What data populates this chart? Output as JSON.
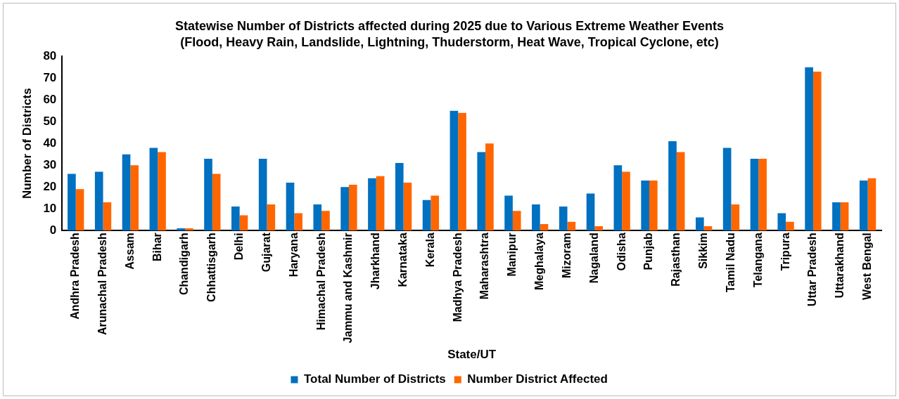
{
  "chart_data": {
    "type": "bar",
    "title": "Statewise Number of Districts affected during 2025 due to Various Extreme Weather Events",
    "subtitle": "(Flood, Heavy Rain, Landslide, Lightning, Thuderstorm, Heat Wave, Tropical Cyclone, etc)",
    "xlabel": "State/UT",
    "ylabel": "Number of Districts",
    "categories": [
      "Andhra Pradesh",
      "Arunachal Pradesh",
      "Assam",
      "Bihar",
      "Chandigarh",
      "Chhattisgarh",
      "Delhi",
      "Gujarat",
      "Haryana",
      "Himachal Pradesh",
      "Jammu and Kashmir",
      "Jharkhand",
      "Karnataka",
      "Kerala",
      "Madhya Pradesh",
      "Maharashtra",
      "Manipur",
      "Meghalaya",
      "Mizoram",
      "Nagaland",
      "Odisha",
      "Punjab",
      "Rajasthan",
      "Sikkim",
      "Tamil Nadu",
      "Telangana",
      "Tripura",
      "Uttar Pradesh",
      "Uttarakhand",
      "West Bengal"
    ],
    "series": [
      {
        "name": "Total Number of Districts",
        "color": "#0070c0",
        "values": [
          26,
          27,
          35,
          38,
          1,
          33,
          11,
          33,
          22,
          12,
          20,
          24,
          31,
          14,
          55,
          36,
          16,
          12,
          11,
          17,
          30,
          23,
          41,
          6,
          38,
          33,
          8,
          75,
          13,
          23
        ]
      },
      {
        "name": "Number District Affected",
        "color": "#ff6600",
        "values": [
          19,
          13,
          30,
          36,
          1,
          26,
          7,
          12,
          8,
          9,
          21,
          25,
          22,
          16,
          54,
          40,
          9,
          3,
          4,
          2,
          27,
          23,
          36,
          2,
          12,
          33,
          4,
          73,
          13,
          24
        ]
      }
    ],
    "ylim": [
      0,
      80
    ],
    "yticks": [
      0,
      10,
      20,
      30,
      40,
      50,
      60,
      70,
      80
    ],
    "grid": false,
    "legend": "bottom"
  }
}
